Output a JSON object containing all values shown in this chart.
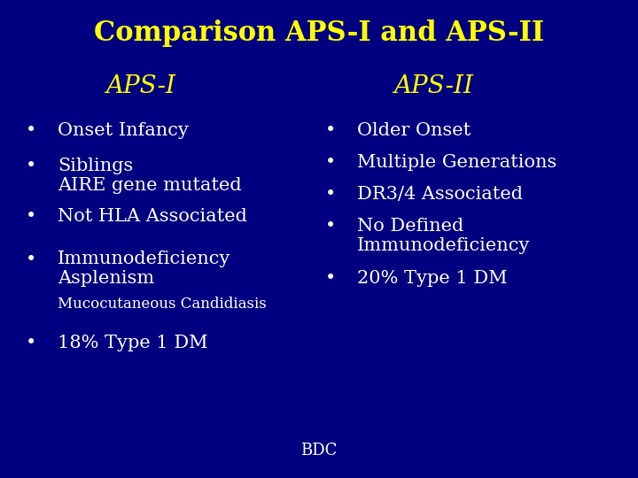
{
  "bg_color": "#000080",
  "title_line1": "Comparison APS-I and APS-II",
  "title_color": "#FFFF00",
  "title_fontsize": 22,
  "subtitle_left": "APS-I",
  "subtitle_right": "APS-II",
  "subtitle_color": "#FFFF00",
  "subtitle_fontsize": 20,
  "left_bullets": [
    "Onset Infancy",
    "Siblings\nAIRE gene mutated",
    "Not HLA Associated",
    "Immunodeficiency\nAsplenism"
  ],
  "left_sub": "Mucocutaneous Candidiasis",
  "left_last_bullet": "18% Type 1 DM",
  "right_bullets": [
    "Older Onset",
    "Multiple Generations",
    "DR3/4 Associated",
    "No Defined\nImmunodeficiency",
    "20% Type 1 DM"
  ],
  "bullet_color": "#FFFFFF",
  "bullet_fontsize": 15,
  "sub_fontsize": 12,
  "footer": "BDC",
  "footer_color": "#FFFFFF",
  "footer_fontsize": 13
}
